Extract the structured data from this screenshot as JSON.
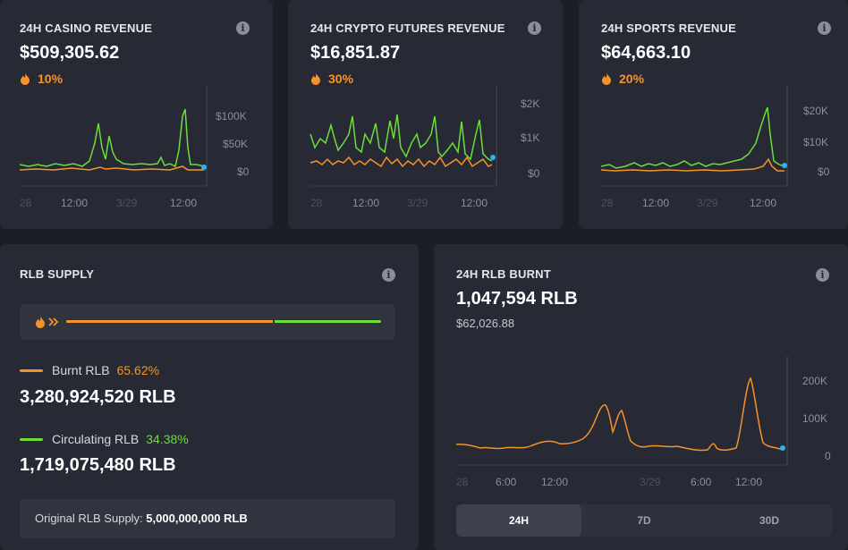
{
  "cards": {
    "casino": {
      "title": "24H CASINO REVENUE",
      "value": "$509,305.62",
      "pct": "10%",
      "y_ticks": [
        "$100K",
        "$50K",
        "$0"
      ],
      "x_ticks": [
        "28",
        "12:00",
        "3/29",
        "12:00"
      ]
    },
    "futures": {
      "title": "24H CRYPTO FUTURES REVENUE",
      "value": "$16,851.87",
      "pct": "30%",
      "y_ticks": [
        "$2K",
        "$1K",
        "$0"
      ],
      "x_ticks": [
        "28",
        "12:00",
        "3/29",
        "12:00"
      ]
    },
    "sports": {
      "title": "24H SPORTS REVENUE",
      "value": "$64,663.10",
      "pct": "20%",
      "y_ticks": [
        "$20K",
        "$10K",
        "$0"
      ],
      "x_ticks": [
        "28",
        "12:00",
        "3/29",
        "12:00"
      ]
    }
  },
  "supply": {
    "title": "RLB SUPPLY",
    "burnt_label": "Burnt RLB",
    "burnt_pct": "65.62%",
    "burnt_fraction": 0.6562,
    "burnt_amount": "3,280,924,520 RLB",
    "circ_label": "Circulating RLB",
    "circ_pct": "34.38%",
    "circ_amount": "1,719,075,480 RLB",
    "original_label": "Original RLB Supply:",
    "original_value": "5,000,000,000 RLB"
  },
  "burn": {
    "title": "24H RLB BURNT",
    "value": "1,047,594 RLB",
    "usd": "$62,026.88",
    "y_ticks": [
      "200K",
      "100K",
      "0"
    ],
    "x_ticks": [
      "28",
      "6:00",
      "12:00",
      "3/29",
      "6:00",
      "12:00"
    ],
    "tabs": [
      "24H",
      "7D",
      "30D"
    ],
    "active_tab": "24H"
  },
  "colors": {
    "orange": "#f5932a",
    "green": "#6ddc3d",
    "dot": "#2db4f0",
    "card": "#272a35",
    "bg": "#1b1e27"
  },
  "icons": [
    "info-icon",
    "flame-icon",
    "double-chevron-icon"
  ]
}
